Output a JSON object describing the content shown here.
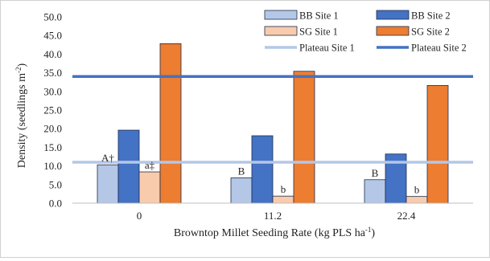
{
  "chart_data": {
    "type": "bar",
    "categories": [
      "0",
      "11.2",
      "22.4"
    ],
    "series": [
      {
        "name": "BB Site 1",
        "values": [
          10.3,
          6.8,
          6.3
        ],
        "fill": "#b4c7e7",
        "stroke": "#1f2d4d"
      },
      {
        "name": "BB Site 2",
        "values": [
          19.6,
          18.1,
          13.2
        ],
        "fill": "#4472c4",
        "stroke": "#1f2d4d"
      },
      {
        "name": "SG Site 1",
        "values": [
          8.4,
          1.9,
          1.8
        ],
        "fill": "#f8cbad",
        "stroke": "#1f2d4d"
      },
      {
        "name": "SG Site 2",
        "values": [
          42.8,
          35.4,
          31.6
        ],
        "fill": "#ed7d31",
        "stroke": "#1f2d4d"
      }
    ],
    "reference_lines": [
      {
        "name": "Plateau Site 1",
        "value": 11.0,
        "color": "#b4c7e7"
      },
      {
        "name": "Plateau Site 2",
        "value": 34.0,
        "color": "#4472c4"
      }
    ],
    "annotations": [
      {
        "category": 0,
        "series": 0,
        "text": "A†"
      },
      {
        "category": 0,
        "series": 2,
        "text": "a‡"
      },
      {
        "category": 1,
        "series": 0,
        "text": "B"
      },
      {
        "category": 1,
        "series": 2,
        "text": "b"
      },
      {
        "category": 2,
        "series": 0,
        "text": "B"
      },
      {
        "category": 2,
        "series": 2,
        "text": "b"
      }
    ],
    "xlabel_main": "Browntop Millet  Seeding Rate (kg PLS ha",
    "xlabel_sup": "-1",
    "xlabel_end": ")",
    "ylabel_main": "Density (seedlings m",
    "ylabel_sup": "-2",
    "ylabel_end": ")",
    "ylim": [
      0,
      50
    ],
    "yticks": [
      "0.0",
      "5.0",
      "10.0",
      "15.0",
      "20.0",
      "25.0",
      "30.0",
      "35.0",
      "40.0",
      "45.0",
      "50.0"
    ],
    "grid": false,
    "legend_position": "top-right"
  }
}
